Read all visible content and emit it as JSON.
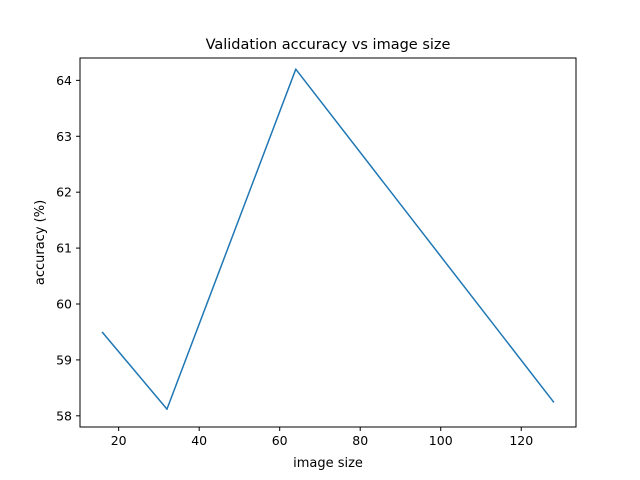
{
  "chart_data": {
    "type": "line",
    "title": "Validation accuracy vs image size",
    "xlabel": "image size",
    "ylabel": "accuracy (%)",
    "xlim": [
      10.4,
      133.6
    ],
    "ylim": [
      57.8,
      64.4
    ],
    "xticks": [
      20,
      40,
      60,
      80,
      100,
      120
    ],
    "yticks": [
      58,
      59,
      60,
      61,
      62,
      63,
      64
    ],
    "grid": false,
    "series": [
      {
        "color": "#1f77b4",
        "x": [
          16,
          32,
          64,
          128
        ],
        "y": [
          59.49,
          58.12,
          64.2,
          58.25
        ]
      }
    ]
  }
}
